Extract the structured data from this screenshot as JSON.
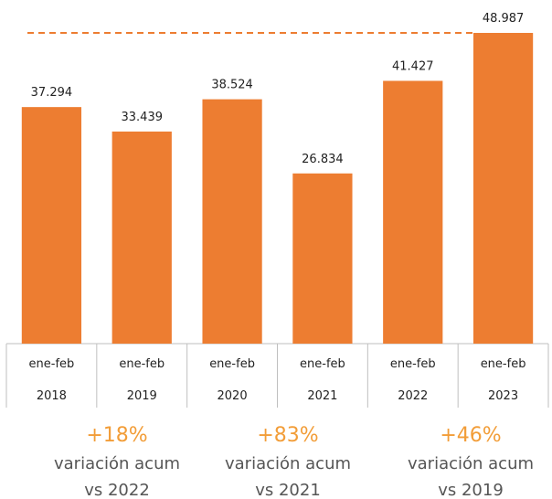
{
  "chart_data": {
    "type": "bar",
    "categories": [
      "ene-feb\n2018",
      "ene-feb\n2019",
      "ene-feb\n2020",
      "ene-feb\n2021",
      "ene-feb\n2022",
      "ene-feb\n2023"
    ],
    "values": [
      37294,
      33439,
      38524,
      26834,
      41427,
      48987
    ],
    "value_labels": [
      "37.294",
      "33.439",
      "38.524",
      "26.834",
      "41.427",
      "48.987"
    ],
    "color": "#ed7d31",
    "annotations": [
      {
        "change": "+18%",
        "label": "variación acum",
        "comparison": "vs 2022"
      },
      {
        "change": "+83%",
        "label": "variación acum",
        "comparison": "vs 2021"
      },
      {
        "change": "+46%",
        "label": "variación acum",
        "comparison": "vs 2019"
      }
    ]
  }
}
